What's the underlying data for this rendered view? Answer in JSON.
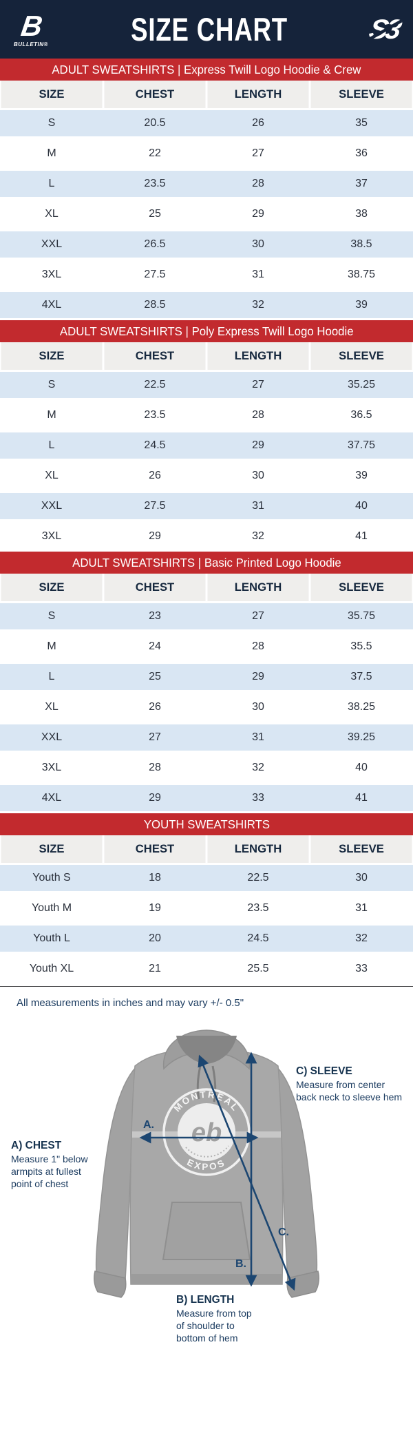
{
  "header": {
    "title": "SIZE CHART",
    "brand_left_glyph": "B",
    "brand_left": "BULLETIN®",
    "brand_right": "S3"
  },
  "colors": {
    "navy": "#15233a",
    "red": "#c22a2e",
    "row_blue": "#d9e6f3",
    "header_bg": "#efeeec",
    "head_text": "#16283e",
    "cell_text": "#2b313c",
    "arrow_navy": "#1c4671",
    "note_navy": "#1c3c60"
  },
  "tables": [
    {
      "banner": "ADULT SWEATSHIRTS | Express Twill Logo Hoodie & Crew",
      "columns": [
        "SIZE",
        "CHEST",
        "LENGTH",
        "SLEEVE"
      ],
      "rows": [
        [
          "S",
          "20.5",
          "26",
          "35"
        ],
        [
          "M",
          "22",
          "27",
          "36"
        ],
        [
          "L",
          "23.5",
          "28",
          "37"
        ],
        [
          "XL",
          "25",
          "29",
          "38"
        ],
        [
          "XXL",
          "26.5",
          "30",
          "38.5"
        ],
        [
          "3XL",
          "27.5",
          "31",
          "38.75"
        ],
        [
          "4XL",
          "28.5",
          "32",
          "39"
        ]
      ]
    },
    {
      "banner": "ADULT SWEATSHIRTS | Poly Express Twill Logo Hoodie",
      "columns": [
        "SIZE",
        "CHEST",
        "LENGTH",
        "SLEEVE"
      ],
      "rows": [
        [
          "S",
          "22.5",
          "27",
          "35.25"
        ],
        [
          "M",
          "23.5",
          "28",
          "36.5"
        ],
        [
          "L",
          "24.5",
          "29",
          "37.75"
        ],
        [
          "XL",
          "26",
          "30",
          "39"
        ],
        [
          "XXL",
          "27.5",
          "31",
          "40"
        ],
        [
          "3XL",
          "29",
          "32",
          "41"
        ]
      ]
    },
    {
      "banner": "ADULT SWEATSHIRTS | Basic Printed Logo Hoodie",
      "columns": [
        "SIZE",
        "CHEST",
        "LENGTH",
        "SLEEVE"
      ],
      "rows": [
        [
          "S",
          "23",
          "27",
          "35.75"
        ],
        [
          "M",
          "24",
          "28",
          "35.5"
        ],
        [
          "L",
          "25",
          "29",
          "37.5"
        ],
        [
          "XL",
          "26",
          "30",
          "38.25"
        ],
        [
          "XXL",
          "27",
          "31",
          "39.25"
        ],
        [
          "3XL",
          "28",
          "32",
          "40"
        ],
        [
          "4XL",
          "29",
          "33",
          "41"
        ]
      ]
    },
    {
      "banner": "YOUTH SWEATSHIRTS",
      "columns": [
        "SIZE",
        "CHEST",
        "LENGTH",
        "SLEEVE"
      ],
      "rows": [
        [
          "Youth S",
          "18",
          "22.5",
          "30"
        ],
        [
          "Youth M",
          "19",
          "23.5",
          "31"
        ],
        [
          "Youth L",
          "20",
          "24.5",
          "32"
        ],
        [
          "Youth XL",
          "21",
          "25.5",
          "33"
        ]
      ]
    }
  ],
  "note": "All measurements in inches and may vary +/- 0.5\"",
  "diagram": {
    "logo_top": "MONTREAL",
    "logo_bottom": "EXPOS",
    "logo_center": "eb",
    "arrow_labels": {
      "a": "A.",
      "b": "B.",
      "c": "C."
    },
    "annotations": {
      "chest": {
        "title": "A) CHEST",
        "body": "Measure 1\" below\narmpits at fullest\npoint of chest"
      },
      "length": {
        "title": "B) LENGTH",
        "body": "Measure from top\nof shoulder to\nbottom of hem"
      },
      "sleeve": {
        "title": "C) SLEEVE",
        "body": "Measure from center\nback neck to sleeve hem"
      }
    }
  }
}
